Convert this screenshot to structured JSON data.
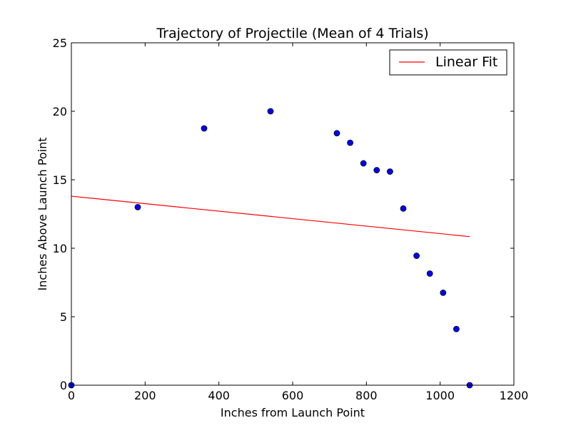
{
  "chart_data": {
    "type": "scatter",
    "title": "Trajectory of Projectile (Mean of 4 Trials)",
    "xlabel": "Inches from Launch Point",
    "ylabel": "Inches Above Launch Point",
    "xlim": [
      0,
      1200
    ],
    "ylim": [
      0,
      25
    ],
    "xticks": [
      0,
      200,
      400,
      600,
      800,
      1000,
      1200
    ],
    "yticks": [
      0,
      5,
      10,
      15,
      20,
      25
    ],
    "grid": false,
    "legend_position": "top-right",
    "series": [
      {
        "type": "scatter",
        "color": "#0000ff",
        "x": [
          0,
          180,
          360,
          540,
          720,
          756,
          792,
          828,
          864,
          900,
          936,
          972,
          1008,
          1044,
          1080
        ],
        "y": [
          0,
          13.0,
          18.75,
          20.0,
          18.4,
          17.7,
          16.2,
          15.7,
          15.6,
          12.9,
          9.45,
          8.15,
          6.75,
          4.1,
          0
        ]
      },
      {
        "type": "line",
        "name": "Linear Fit",
        "color": "#ff0000",
        "x": [
          0,
          1080
        ],
        "y": [
          13.8,
          10.85
        ]
      }
    ]
  }
}
